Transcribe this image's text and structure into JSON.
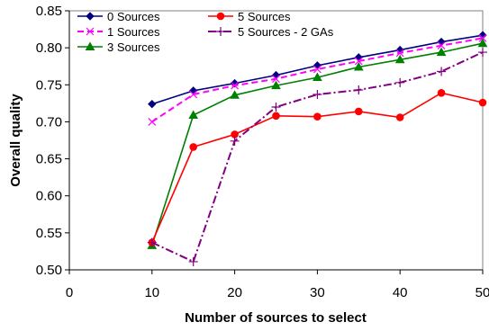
{
  "chart_data": {
    "type": "line",
    "title": "",
    "xlabel": "Number of sources to select",
    "ylabel": "Overall quality",
    "xlim": [
      0,
      50
    ],
    "ylim": [
      0.5,
      0.85
    ],
    "xticks": [
      0,
      10,
      20,
      30,
      40,
      50
    ],
    "yticks": [
      0.5,
      0.55,
      0.6,
      0.65,
      0.7,
      0.75,
      0.8,
      0.85
    ],
    "xtick_labels": [
      "0",
      "10",
      "20",
      "30",
      "40",
      "50"
    ],
    "ytick_labels": [
      "0.50",
      "0.55",
      "0.60",
      "0.65",
      "0.70",
      "0.75",
      "0.80",
      "0.85"
    ],
    "grid": false,
    "legend_position": "top-left, inside plot",
    "series": [
      {
        "name": "0 Sources",
        "color": "#000080",
        "marker": "diamond",
        "dash": "solid",
        "x": [
          10,
          15,
          20,
          25,
          30,
          35,
          40,
          45,
          50
        ],
        "y": [
          0.724,
          0.742,
          0.752,
          0.763,
          0.776,
          0.787,
          0.797,
          0.808,
          0.817
        ]
      },
      {
        "name": "1 Sources",
        "color": "#ff00ff",
        "marker": "x",
        "dash": "dashed",
        "x": [
          10,
          15,
          20,
          25,
          30,
          35,
          40,
          45,
          50
        ],
        "y": [
          0.7,
          0.737,
          0.749,
          0.758,
          0.771,
          0.782,
          0.793,
          0.803,
          0.813
        ]
      },
      {
        "name": "3 Sources",
        "color": "#008000",
        "marker": "triangle",
        "dash": "solid",
        "x": [
          10,
          15,
          20,
          25,
          30,
          35,
          40,
          45,
          50
        ],
        "y": [
          0.533,
          0.709,
          0.736,
          0.749,
          0.76,
          0.774,
          0.784,
          0.794,
          0.806
        ]
      },
      {
        "name": "5 Sources",
        "color": "#ff0000",
        "marker": "circle",
        "dash": "solid",
        "x": [
          10,
          15,
          20,
          25,
          30,
          35,
          40,
          45,
          50
        ],
        "y": [
          0.537,
          0.666,
          0.683,
          0.708,
          0.707,
          0.714,
          0.706,
          0.739,
          0.726
        ]
      },
      {
        "name": "5 Sources - 2 GAs",
        "color": "#800080",
        "marker": "plus",
        "dash": "dashdot",
        "x": [
          10,
          15,
          20,
          25,
          30,
          35,
          40,
          45,
          50
        ],
        "y": [
          0.537,
          0.511,
          0.674,
          0.72,
          0.737,
          0.743,
          0.753,
          0.768,
          0.794
        ]
      }
    ]
  }
}
